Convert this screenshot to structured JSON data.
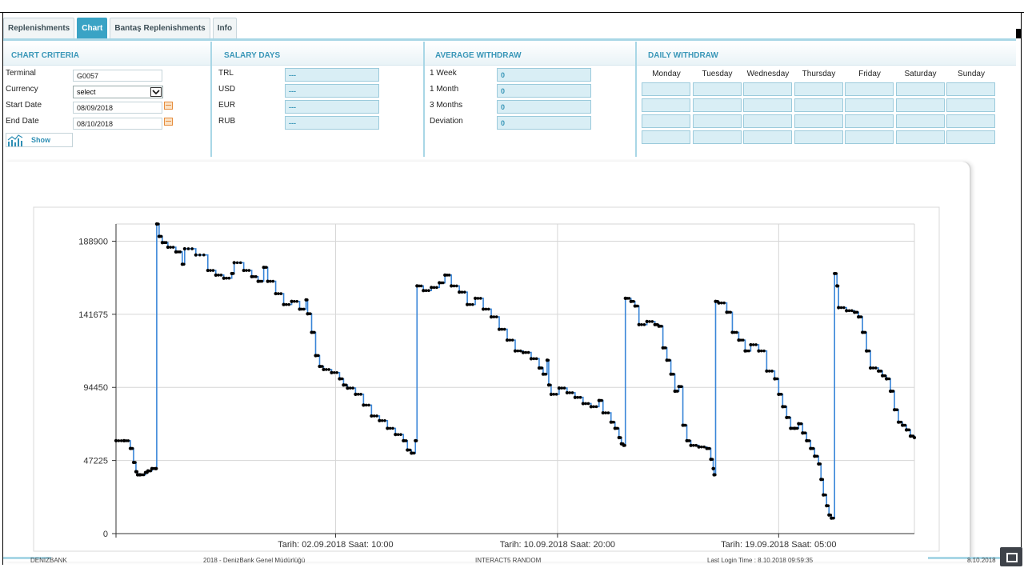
{
  "tabs": [
    {
      "label": "Replenishments",
      "active": false
    },
    {
      "label": "Chart",
      "active": true
    },
    {
      "label": "Bantaş Replenishments",
      "active": false
    },
    {
      "label": "Info",
      "active": false
    }
  ],
  "criteria": {
    "title": "CHART CRITERIA",
    "terminal_label": "Terminal",
    "terminal_value": "G0057",
    "currency_label": "Currency",
    "currency_value": "select",
    "start_label": "Start Date",
    "start_value": "08/09/2018",
    "end_label": "End Date",
    "end_value": "08/10/2018",
    "show_label": "Show"
  },
  "salary_days": {
    "title": "SALARY DAYS",
    "rows": [
      {
        "label": "TRL",
        "value": "---"
      },
      {
        "label": "USD",
        "value": "---"
      },
      {
        "label": "EUR",
        "value": "---"
      },
      {
        "label": "RUB",
        "value": "---"
      }
    ]
  },
  "average_withdraw": {
    "title": "AVERAGE WITHDRAW",
    "rows": [
      {
        "label": "1 Week",
        "value": "0"
      },
      {
        "label": "1 Month",
        "value": "0"
      },
      {
        "label": "3 Months",
        "value": "0"
      },
      {
        "label": "Deviation",
        "value": "0"
      }
    ]
  },
  "daily_withdraw": {
    "title": "DAILY WITHDRAW",
    "days": [
      "Monday",
      "Tuesday",
      "Wednesday",
      "Thursday",
      "Friday",
      "Saturday",
      "Sunday"
    ]
  },
  "colors": {
    "accent": "#3aa3c5",
    "line": "#3a86d8",
    "point": "#000000",
    "grid": "#d6d6d6"
  },
  "chart_data": {
    "type": "line",
    "title": "",
    "xlabel": "",
    "ylabel": "",
    "ylim": [
      0,
      200000
    ],
    "yticks": [
      0,
      47225,
      94450,
      141675,
      188900
    ],
    "xticks": [
      {
        "t": 0.275,
        "label": "Tarih: 02.09.2018 Saat: 10:00"
      },
      {
        "t": 0.553,
        "label": "Tarih: 10.09.2018 Saat: 20:00"
      },
      {
        "t": 0.83,
        "label": "Tarih: 19.09.2018 Saat: 05:00"
      }
    ],
    "x_range": [
      0,
      1
    ],
    "series": [
      {
        "style": "step-with-markers",
        "points": [
          [
            0.0,
            60000
          ],
          [
            0.01,
            60000
          ],
          [
            0.018,
            55000
          ],
          [
            0.022,
            46000
          ],
          [
            0.025,
            40000
          ],
          [
            0.027,
            38000
          ],
          [
            0.03,
            38000
          ],
          [
            0.037,
            39500
          ],
          [
            0.04,
            40500
          ],
          [
            0.045,
            42000
          ],
          [
            0.05,
            42000
          ],
          [
            0.051,
            200000
          ],
          [
            0.054,
            192000
          ],
          [
            0.058,
            188000
          ],
          [
            0.065,
            185000
          ],
          [
            0.075,
            182000
          ],
          [
            0.083,
            174000
          ],
          [
            0.086,
            184000
          ],
          [
            0.1,
            180000
          ],
          [
            0.115,
            170000
          ],
          [
            0.125,
            167000
          ],
          [
            0.135,
            165000
          ],
          [
            0.145,
            168000
          ],
          [
            0.148,
            175000
          ],
          [
            0.16,
            170000
          ],
          [
            0.17,
            166000
          ],
          [
            0.178,
            163000
          ],
          [
            0.185,
            172000
          ],
          [
            0.19,
            163000
          ],
          [
            0.2,
            155000
          ],
          [
            0.21,
            148000
          ],
          [
            0.22,
            150000
          ],
          [
            0.23,
            145000
          ],
          [
            0.238,
            151000
          ],
          [
            0.24,
            142000
          ],
          [
            0.245,
            130000
          ],
          [
            0.25,
            115000
          ],
          [
            0.255,
            108000
          ],
          [
            0.26,
            106000
          ],
          [
            0.27,
            104000
          ],
          [
            0.28,
            100000
          ],
          [
            0.285,
            96000
          ],
          [
            0.29,
            94000
          ],
          [
            0.3,
            90000
          ],
          [
            0.31,
            83000
          ],
          [
            0.32,
            76000
          ],
          [
            0.33,
            73000
          ],
          [
            0.34,
            68000
          ],
          [
            0.35,
            64000
          ],
          [
            0.36,
            60000
          ],
          [
            0.365,
            54000
          ],
          [
            0.37,
            52000
          ],
          [
            0.375,
            60000
          ],
          [
            0.377,
            160000
          ],
          [
            0.385,
            157000
          ],
          [
            0.395,
            159000
          ],
          [
            0.405,
            162000
          ],
          [
            0.412,
            167000
          ],
          [
            0.42,
            160000
          ],
          [
            0.43,
            156000
          ],
          [
            0.44,
            148000
          ],
          [
            0.45,
            152000
          ],
          [
            0.46,
            145000
          ],
          [
            0.47,
            140000
          ],
          [
            0.48,
            132000
          ],
          [
            0.49,
            125000
          ],
          [
            0.5,
            118000
          ],
          [
            0.51,
            117000
          ],
          [
            0.52,
            113000
          ],
          [
            0.53,
            107000
          ],
          [
            0.535,
            103000
          ],
          [
            0.54,
            112000
          ],
          [
            0.542,
            96000
          ],
          [
            0.545,
            90000
          ],
          [
            0.555,
            94000
          ],
          [
            0.565,
            91000
          ],
          [
            0.575,
            88000
          ],
          [
            0.585,
            84000
          ],
          [
            0.595,
            82000
          ],
          [
            0.605,
            86000
          ],
          [
            0.61,
            78000
          ],
          [
            0.62,
            72000
          ],
          [
            0.625,
            68000
          ],
          [
            0.63,
            62000
          ],
          [
            0.633,
            58000
          ],
          [
            0.636,
            57000
          ],
          [
            0.638,
            152000
          ],
          [
            0.645,
            150000
          ],
          [
            0.65,
            147000
          ],
          [
            0.655,
            135000
          ],
          [
            0.665,
            137000
          ],
          [
            0.675,
            135000
          ],
          [
            0.68,
            134000
          ],
          [
            0.685,
            120000
          ],
          [
            0.69,
            112000
          ],
          [
            0.695,
            103000
          ],
          [
            0.7,
            92000
          ],
          [
            0.705,
            95000
          ],
          [
            0.71,
            70000
          ],
          [
            0.715,
            60000
          ],
          [
            0.72,
            57000
          ],
          [
            0.73,
            56000
          ],
          [
            0.74,
            55000
          ],
          [
            0.745,
            48000
          ],
          [
            0.748,
            42000
          ],
          [
            0.749,
            38000
          ],
          [
            0.751,
            150000
          ],
          [
            0.755,
            149000
          ],
          [
            0.765,
            143000
          ],
          [
            0.772,
            130000
          ],
          [
            0.78,
            125000
          ],
          [
            0.788,
            118000
          ],
          [
            0.795,
            122000
          ],
          [
            0.805,
            118000
          ],
          [
            0.815,
            105000
          ],
          [
            0.825,
            100000
          ],
          [
            0.83,
            90000
          ],
          [
            0.835,
            82000
          ],
          [
            0.84,
            75000
          ],
          [
            0.845,
            68000
          ],
          [
            0.85,
            68000
          ],
          [
            0.855,
            71000
          ],
          [
            0.86,
            65000
          ],
          [
            0.865,
            60000
          ],
          [
            0.87,
            55000
          ],
          [
            0.875,
            50000
          ],
          [
            0.88,
            45000
          ],
          [
            0.883,
            35000
          ],
          [
            0.886,
            25000
          ],
          [
            0.89,
            18000
          ],
          [
            0.893,
            12000
          ],
          [
            0.896,
            10000
          ],
          [
            0.9,
            168000
          ],
          [
            0.903,
            160000
          ],
          [
            0.905,
            146000
          ],
          [
            0.915,
            144000
          ],
          [
            0.925,
            143000
          ],
          [
            0.93,
            140000
          ],
          [
            0.935,
            130000
          ],
          [
            0.94,
            118000
          ],
          [
            0.945,
            107000
          ],
          [
            0.955,
            105000
          ],
          [
            0.96,
            102000
          ],
          [
            0.965,
            100000
          ],
          [
            0.97,
            92000
          ],
          [
            0.975,
            80000
          ],
          [
            0.98,
            72000
          ],
          [
            0.985,
            70000
          ],
          [
            0.99,
            67000
          ],
          [
            0.995,
            63000
          ],
          [
            1.0,
            62000
          ]
        ]
      }
    ]
  },
  "footer": {
    "left": "DENIZBANK",
    "center_left": "2018 - DenizBank Genel Müdürlüğü",
    "center": "INTERACT5 RANDOM",
    "right": "Last Login Time : 8.10.2018 09:59:35",
    "far_right": "8.10.2018"
  }
}
